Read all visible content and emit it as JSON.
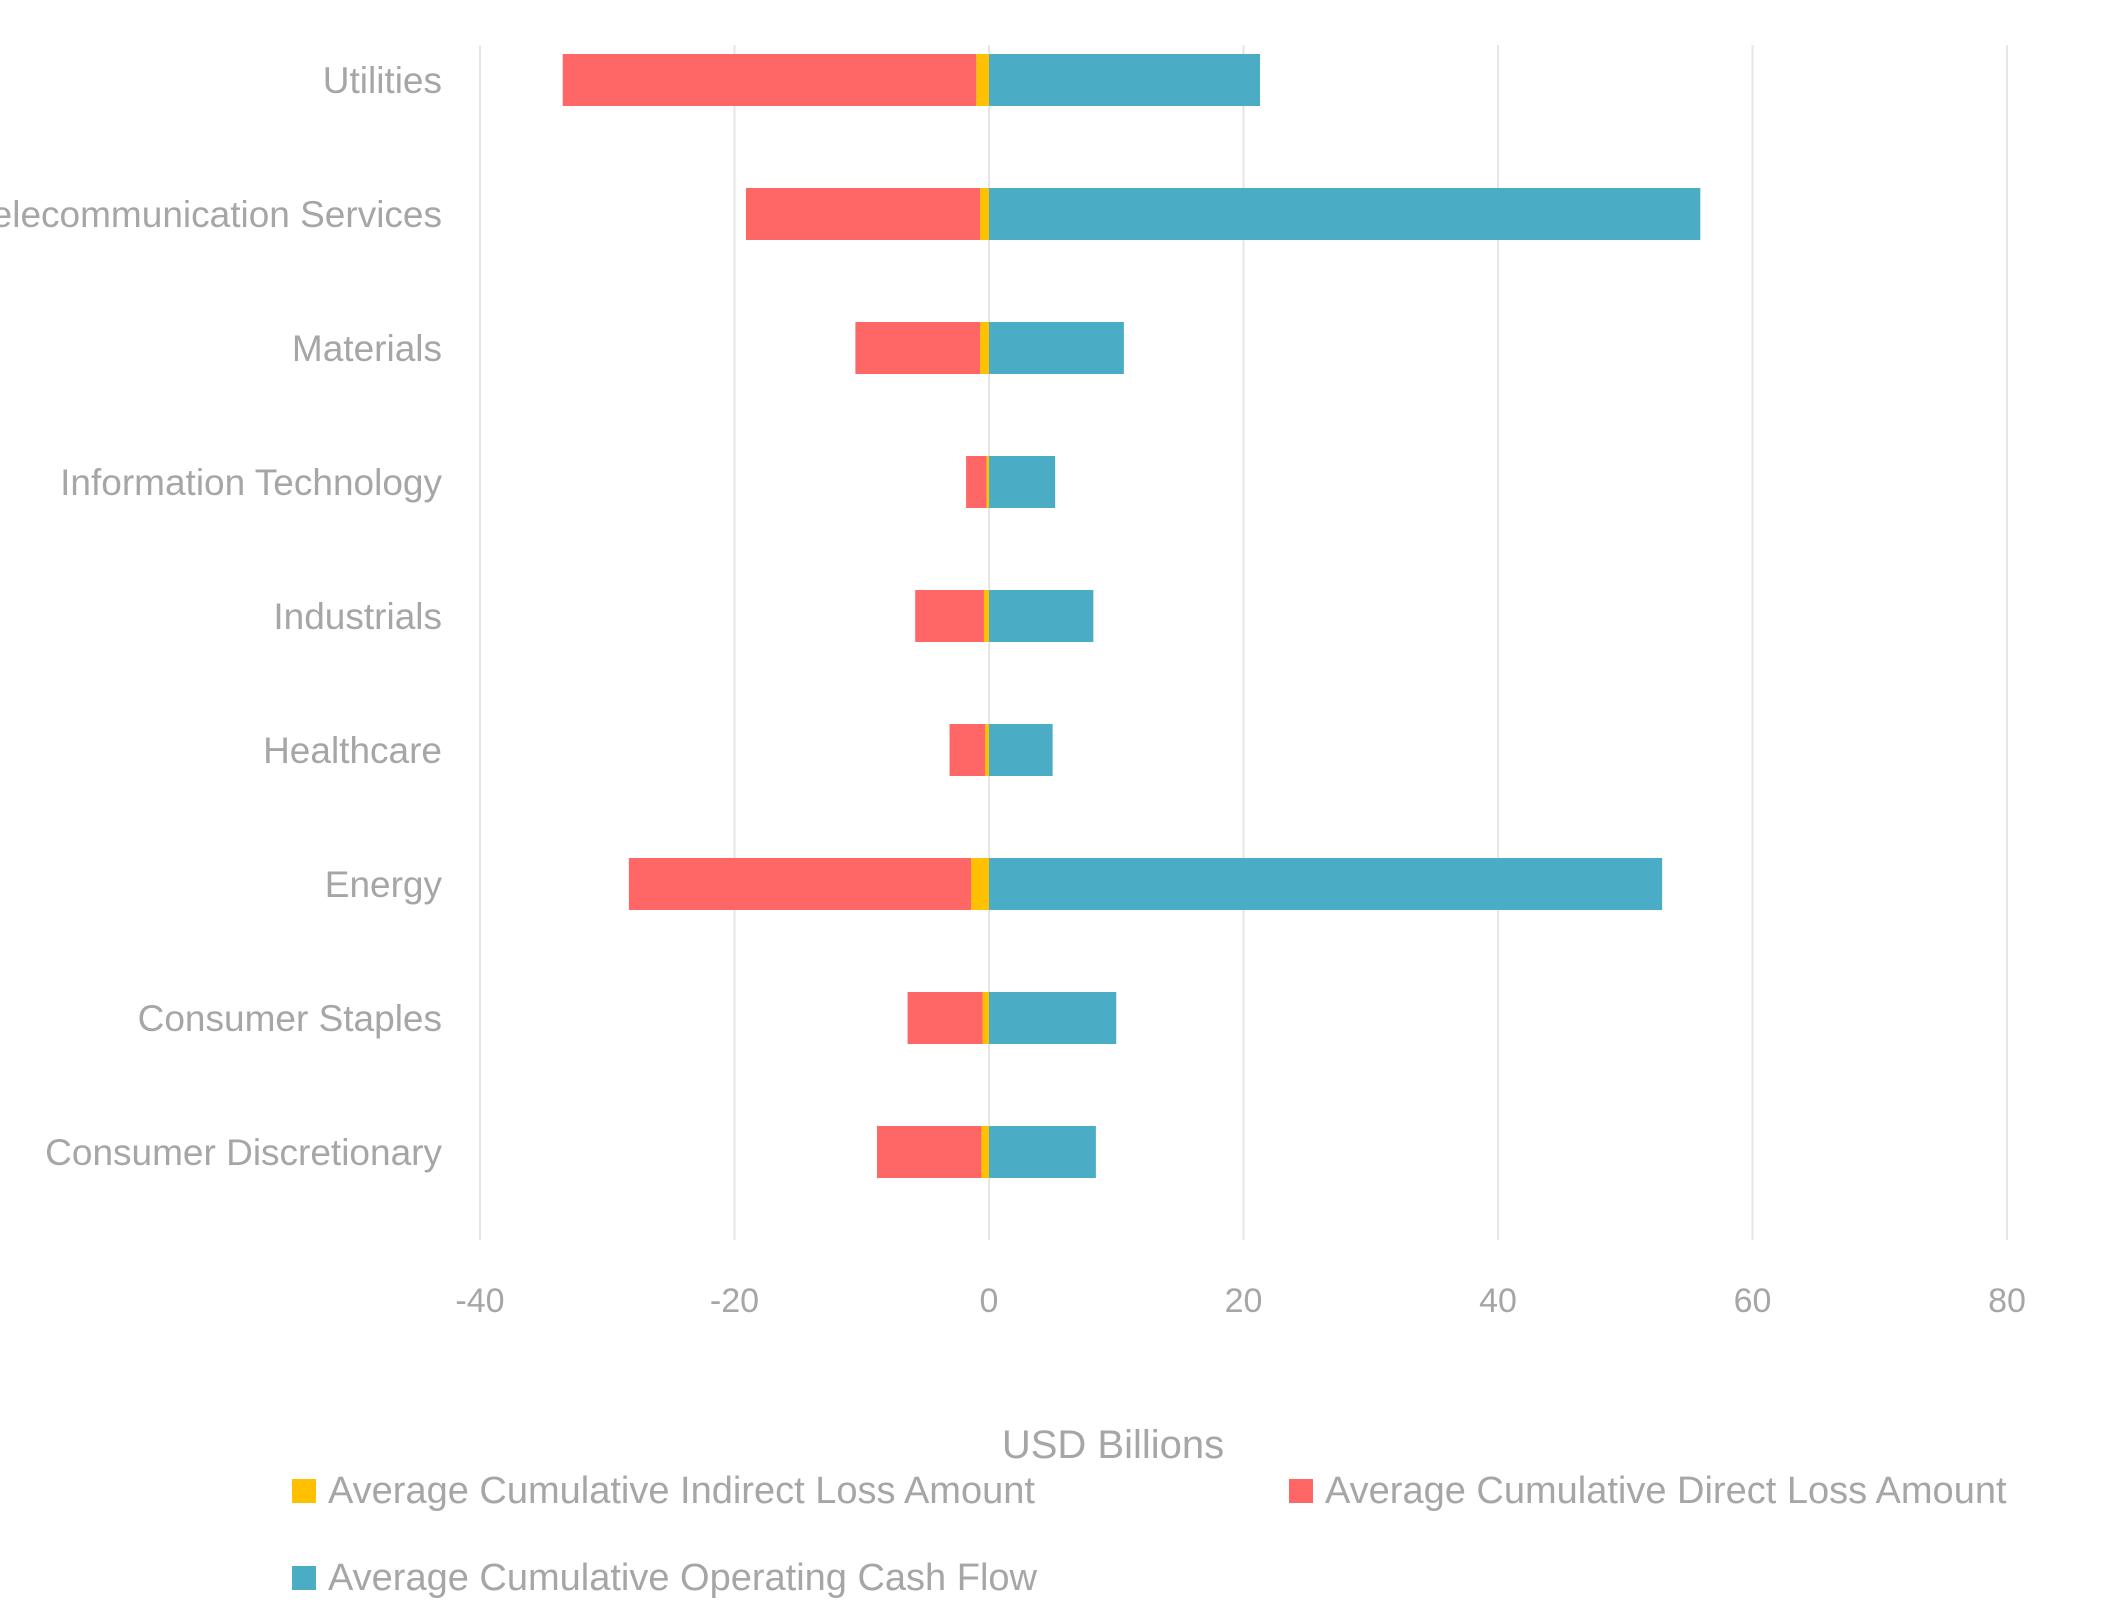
{
  "chart_data": {
    "type": "bar",
    "orientation": "horizontal",
    "stacked": true,
    "categories": [
      "Utilities",
      "Telecommunication Services",
      "Materials",
      "Information Technology",
      "Industrials",
      "Healthcare",
      "Energy",
      "Consumer Staples",
      "Consumer Discretionary"
    ],
    "series": [
      {
        "name": "Average Cumulative Indirect Loss Amount",
        "color": "#ffc000",
        "values": [
          -1.0,
          -0.7,
          -0.7,
          -0.2,
          -0.4,
          -0.3,
          -1.4,
          -0.5,
          -0.6
        ]
      },
      {
        "name": "Average Cumulative Direct Loss Amount",
        "color": "#ff6666",
        "values": [
          -32.5,
          -18.4,
          -9.8,
          -1.6,
          -5.4,
          -2.8,
          -26.9,
          -5.9,
          -8.2
        ]
      },
      {
        "name": "Average Cumulative Operating Cash Flow",
        "color": "#4bacc6",
        "values": [
          21.3,
          55.9,
          10.6,
          5.2,
          8.2,
          5.0,
          52.9,
          10.0,
          8.4
        ]
      }
    ],
    "xlabel": "USD Billions",
    "ylabel": "",
    "xlim": [
      -40,
      80
    ],
    "xticks": [
      -40,
      -20,
      0,
      20,
      40,
      60,
      80
    ],
    "xtick_labels": [
      "-40",
      "-20",
      "0",
      "20",
      "40",
      "60",
      "80"
    ],
    "grid": true,
    "legend_position": "bottom"
  }
}
